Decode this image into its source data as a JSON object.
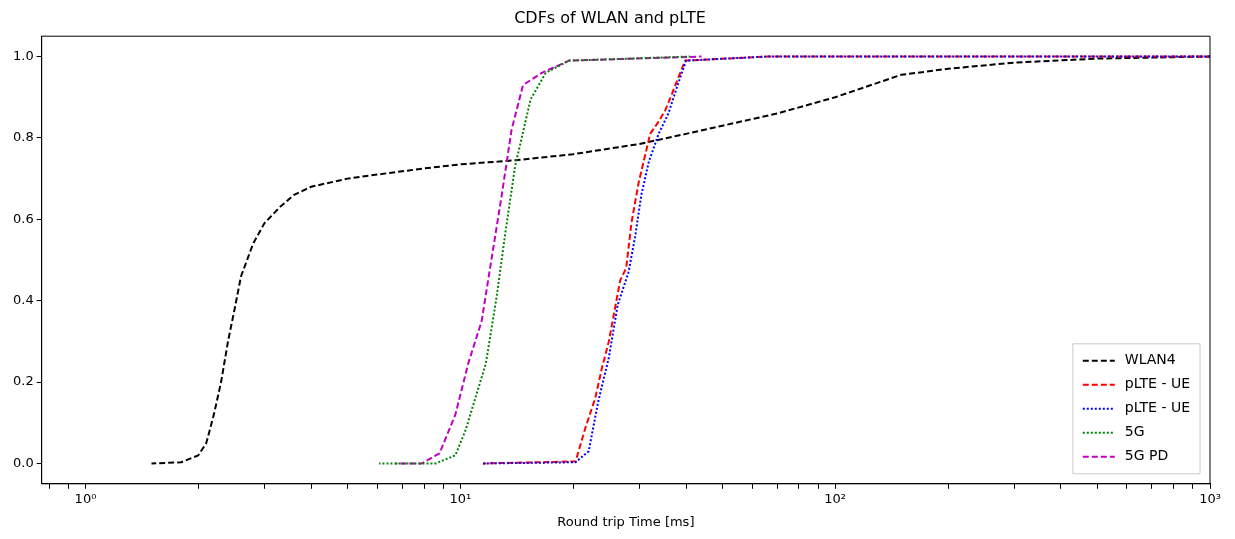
{
  "chart_data": {
    "type": "line",
    "title": "CDFs of WLAN and pLTE",
    "xlabel": "Round trip Time [ms]",
    "log": "x",
    "grid": false,
    "legend": "bottom right",
    "marker": "none",
    "xlim": [
      0.764,
      1000
    ],
    "ylim": [
      -0.05,
      1.05
    ],
    "xticks": [
      {
        "value": 0.8,
        "label": null
      },
      {
        "value": 0.9,
        "label": null
      },
      {
        "value": 1,
        "label": "10⁰"
      },
      {
        "value": 2,
        "label": null
      },
      {
        "value": 3,
        "label": null
      },
      {
        "value": 4,
        "label": null
      },
      {
        "value": 5,
        "label": null
      },
      {
        "value": 6,
        "label": null
      },
      {
        "value": 7,
        "label": null
      },
      {
        "value": 8,
        "label": null
      },
      {
        "value": 9,
        "label": null
      },
      {
        "value": 10,
        "label": "10¹"
      },
      {
        "value": 20,
        "label": null
      },
      {
        "value": 30,
        "label": null
      },
      {
        "value": 40,
        "label": null
      },
      {
        "value": 50,
        "label": null
      },
      {
        "value": 60,
        "label": null
      },
      {
        "value": 70,
        "label": null
      },
      {
        "value": 80,
        "label": null
      },
      {
        "value": 90,
        "label": null
      },
      {
        "value": 100,
        "label": "10²"
      },
      {
        "value": 200,
        "label": null
      },
      {
        "value": 300,
        "label": null
      },
      {
        "value": 400,
        "label": null
      },
      {
        "value": 500,
        "label": null
      },
      {
        "value": 600,
        "label": null
      },
      {
        "value": 700,
        "label": null
      },
      {
        "value": 800,
        "label": null
      },
      {
        "value": 900,
        "label": null
      },
      {
        "value": 1000,
        "label": "10³"
      }
    ],
    "yticks": [
      {
        "value": 0,
        "label": "0.0"
      },
      {
        "value": 0.2,
        "label": "0.2"
      },
      {
        "value": 0.4,
        "label": "0.4"
      },
      {
        "value": 0.6,
        "label": "0.6"
      },
      {
        "value": 0.8,
        "label": "0.8"
      },
      {
        "value": 1,
        "label": "1.0"
      }
    ],
    "series": [
      {
        "name": "WLAN4",
        "color": "#000000",
        "line_style": "dashed",
        "x": [
          1.5,
          1.8,
          2.0,
          2.1,
          2.2,
          2.3,
          2.4,
          2.5,
          2.6,
          2.8,
          3.0,
          3.3,
          3.6,
          4.0,
          5,
          6,
          8,
          10,
          14,
          20,
          30,
          40,
          50,
          70,
          100,
          150,
          200,
          300,
          500,
          1000
        ],
        "values": [
          0,
          0.003,
          0.02,
          0.05,
          0.12,
          0.2,
          0.3,
          0.38,
          0.46,
          0.54,
          0.59,
          0.63,
          0.66,
          0.68,
          0.7,
          0.71,
          0.725,
          0.735,
          0.745,
          0.76,
          0.785,
          0.81,
          0.83,
          0.86,
          0.9,
          0.955,
          0.97,
          0.985,
          0.995,
          1
        ]
      },
      {
        "name": "pLTE - UE",
        "color": "#ff0000",
        "line_style": "dashed",
        "x": [
          11.5,
          20.3,
          21.6,
          22.9,
          23.8,
          24.9,
          26.7,
          27.7,
          28.6,
          29.9,
          30.8,
          32.1,
          33.8,
          35.3,
          36.4,
          38.6,
          39.8,
          66,
          1000
        ],
        "values": [
          0,
          0.005,
          0.09,
          0.16,
          0.23,
          0.3,
          0.45,
          0.48,
          0.59,
          0.69,
          0.74,
          0.81,
          0.84,
          0.87,
          0.9,
          0.96,
          0.99,
          1,
          1
        ]
      },
      {
        "name": "pLTE - UE",
        "color": "#0000ff",
        "line_style": "dotted",
        "x": [
          11.5,
          20.3,
          22.0,
          23.3,
          24.9,
          26.3,
          28.1,
          29.3,
          30.4,
          31.8,
          33.8,
          35.9,
          38.0,
          40.0,
          66,
          1000
        ],
        "values": [
          0,
          0.003,
          0.03,
          0.15,
          0.26,
          0.39,
          0.47,
          0.56,
          0.66,
          0.74,
          0.81,
          0.86,
          0.93,
          0.99,
          1,
          1
        ]
      },
      {
        "name": "5G",
        "color": "#008000",
        "line_style": "dotted",
        "x": [
          6.07,
          8.6,
          9.7,
          10.34,
          11.7,
          12.5,
          13.2,
          14.0,
          15.4,
          16.9,
          19.5,
          41
        ],
        "values": [
          0,
          0,
          0.02,
          0.083,
          0.246,
          0.41,
          0.57,
          0.73,
          0.895,
          0.96,
          0.99,
          1
        ]
      },
      {
        "name": "5G PD",
        "color": "#bf00bf",
        "line_style": "dashed",
        "x": [
          6.7,
          7.9,
          8.8,
          9.7,
          10.5,
          11.4,
          12.1,
          12.9,
          13.7,
          14.7,
          16.5,
          19.5,
          44
        ],
        "values": [
          0,
          0,
          0.025,
          0.12,
          0.246,
          0.35,
          0.5,
          0.66,
          0.82,
          0.93,
          0.96,
          0.99,
          1
        ]
      }
    ]
  }
}
